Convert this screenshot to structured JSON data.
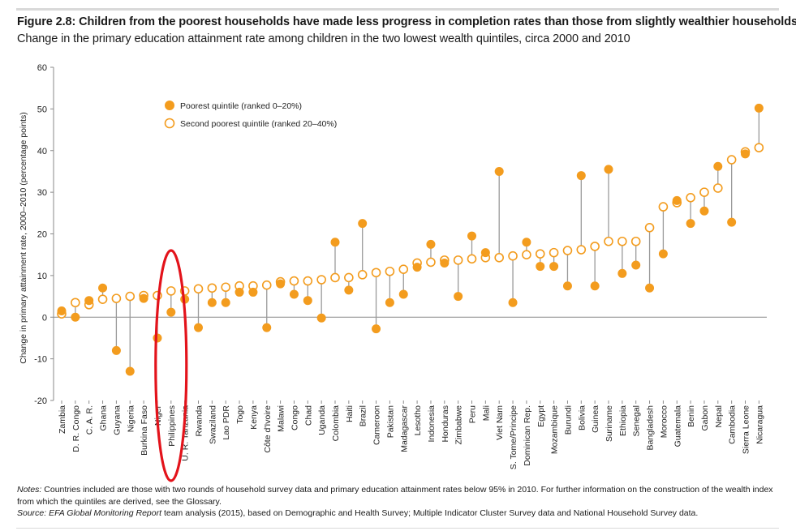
{
  "figure": {
    "title": "Figure 2.8: Children from the poorest households have made less progress in completion rates than those from slightly wealthier households",
    "subtitle": "Change in the primary education attainment rate among children in the two lowest wealth quintiles, circa 2000 and 2010"
  },
  "notes": {
    "label": "Notes:",
    "text1": "Countries included are those with two rounds of household survey data and primary education attainment rates below 95% in 2010. For further information on the construction of the wealth index",
    "text2": "from which the quintiles are derived, see the Glossary.",
    "source_label": "Source:",
    "source_italic": "EFA Global Monitoring Report",
    "source_text": "team analysis (2015), based on Demographic and Health Survey; Multiple Indicator Cluster Survey data and National Household Survey data."
  },
  "colors": {
    "accent": "#f39c1e",
    "connector": "#9a9a9a",
    "highlight": "#e3131b"
  },
  "chart_data": {
    "type": "scatter",
    "ylabel": "Change in primary attainment rate, 2000–2010 (percentage points)",
    "xlabel": "",
    "ylim": [
      -20,
      60
    ],
    "yticks": [
      -20,
      -10,
      0,
      10,
      20,
      30,
      40,
      50,
      60
    ],
    "legend_position": "top-left",
    "highlighted_category": "Philippines",
    "categories": [
      "Zambia",
      "D. R. Congo",
      "C. A. R.",
      "Ghana",
      "Guyana",
      "Nigeria",
      "Burkina Faso",
      "Niger",
      "Philippines",
      "U. R. Tanzania",
      "Rwanda",
      "Swaziland",
      "Lao PDR",
      "Togo",
      "Kenya",
      "Côte d'Ivoire",
      "Malawi",
      "Congo",
      "Chad",
      "Uganda",
      "Colombia",
      "Haiti",
      "Brazil",
      "Cameroon",
      "Pakistan",
      "Madagascar",
      "Lesotho",
      "Indonesia",
      "Honduras",
      "Zimbabwe",
      "Peru",
      "Mali",
      "Viet Nam",
      "S. Tome/Principe",
      "Dominican Rep.",
      "Egypt",
      "Mozambique",
      "Burundi",
      "Bolivia",
      "Guinea",
      "Suriname",
      "Ethiopia",
      "Senegal",
      "Bangladesh",
      "Morocco",
      "Guatemala",
      "Benin",
      "Gabon",
      "Nepal",
      "Cambodia",
      "Sierra Leone",
      "Nicaragua"
    ],
    "series": [
      {
        "name": "Poorest quintile (ranked 0–20%)",
        "marker": "filled",
        "values": [
          1.5,
          0,
          4,
          7,
          -8,
          -13,
          4.5,
          -5,
          1.2,
          4.3,
          -2.5,
          3.5,
          3.5,
          6,
          6,
          -2.5,
          8,
          5.5,
          4,
          -0.2,
          18,
          6.5,
          22.5,
          -2.8,
          3.5,
          5.5,
          12,
          17.5,
          13,
          5,
          19.5,
          15.5,
          35,
          3.5,
          18,
          12.2,
          12.2,
          7.5,
          34,
          7.5,
          35.5,
          10.5,
          12.5,
          7,
          15.2,
          28,
          22.5,
          25.5,
          36.2,
          22.8,
          39.2,
          50.2
        ]
      },
      {
        "name": "Second poorest quintile (ranked 20–40%)",
        "marker": "hollow",
        "values": [
          0.8,
          3.5,
          3,
          4.3,
          4.5,
          5,
          5.2,
          5.2,
          6.3,
          6.3,
          6.8,
          7,
          7.2,
          7.5,
          7.5,
          7.7,
          8.5,
          8.7,
          8.7,
          9,
          9.5,
          9.5,
          10.2,
          10.7,
          11,
          11.5,
          13,
          13.2,
          13.7,
          13.7,
          14,
          14.3,
          14.3,
          14.7,
          15,
          15.2,
          15.5,
          16,
          16.2,
          17,
          18.2,
          18.2,
          18.2,
          21.5,
          26.5,
          27.5,
          28.7,
          30,
          31,
          37.8,
          39.7,
          40.7
        ]
      }
    ]
  }
}
